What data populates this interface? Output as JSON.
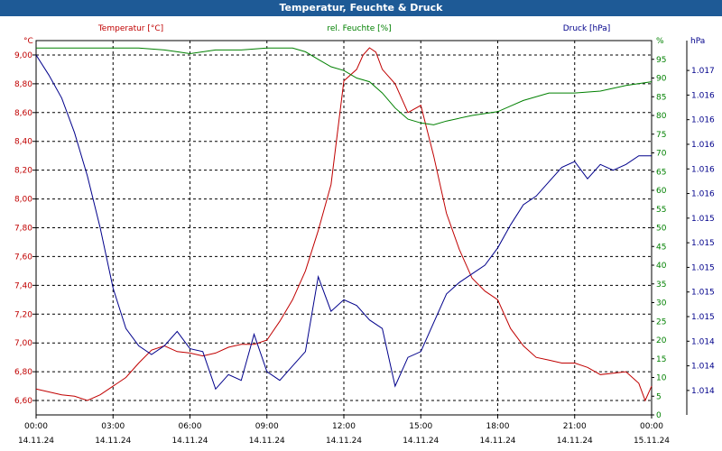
{
  "chart_data": {
    "type": "line",
    "title": "Temperatur, Feuchte & Druck",
    "grid": true,
    "x_ticks": [
      {
        "time": "00:00",
        "date": "14.11.24"
      },
      {
        "time": "03:00",
        "date": "14.11.24"
      },
      {
        "time": "06:00",
        "date": "14.11.24"
      },
      {
        "time": "09:00",
        "date": "14.11.24"
      },
      {
        "time": "12:00",
        "date": "14.11.24"
      },
      {
        "time": "15:00",
        "date": "14.11.24"
      },
      {
        "time": "18:00",
        "date": "14.11.24"
      },
      {
        "time": "21:00",
        "date": "14.11.24"
      },
      {
        "time": "00:00",
        "date": "15.11.24"
      }
    ],
    "x_range_hours": [
      0,
      24
    ],
    "axes": {
      "temperature": {
        "unit": "°C",
        "ylim": [
          6.5,
          9.1
        ],
        "ticks": [
          "6,60",
          "6,80",
          "7,00",
          "7,20",
          "7,40",
          "7,60",
          "7,80",
          "8,00",
          "8,20",
          "8,40",
          "8,60",
          "8,80",
          "9,00"
        ],
        "color": "#c00000"
      },
      "humidity": {
        "unit": "%",
        "ylim": [
          0,
          100
        ],
        "ticks": [
          "0",
          "5",
          "10",
          "15",
          "20",
          "25",
          "30",
          "35",
          "40",
          "45",
          "50",
          "55",
          "60",
          "65",
          "70",
          "75",
          "80",
          "85",
          "90",
          "95",
          "%"
        ],
        "color": "#008000"
      },
      "pressure": {
        "unit": "hPa",
        "ylim": [
          0,
          13
        ],
        "ticks": [
          "1.014",
          "1.014",
          "1.014",
          "1.015",
          "1.015",
          "1.015",
          "1.015",
          "1.015",
          "1.016",
          "1.016",
          "1.016",
          "1.016",
          "1.016",
          "1.017"
        ],
        "color": "#00008b"
      }
    },
    "series": [
      {
        "name": "Temperatur [°C]",
        "axis": "temperature",
        "color": "#c00000",
        "x": [
          0,
          0.5,
          1,
          1.5,
          2,
          2.5,
          3,
          3.5,
          4,
          4.5,
          5,
          5.5,
          6,
          6.5,
          7,
          7.5,
          8,
          8.5,
          9,
          9.5,
          10,
          10.5,
          11,
          11.5,
          12,
          12.5,
          12.75,
          13,
          13.25,
          13.5,
          14,
          14.5,
          15,
          15.5,
          16,
          16.5,
          17,
          17.5,
          18,
          18.5,
          19,
          19.5,
          20,
          20.5,
          21,
          21.5,
          22,
          22.5,
          23,
          23.5,
          23.75,
          24
        ],
        "values": [
          6.68,
          6.66,
          6.64,
          6.63,
          6.6,
          6.64,
          6.7,
          6.76,
          6.86,
          6.95,
          6.98,
          6.94,
          6.93,
          6.91,
          6.93,
          6.97,
          6.99,
          6.99,
          7.02,
          7.15,
          7.3,
          7.5,
          7.78,
          8.1,
          8.82,
          8.9,
          9.0,
          9.05,
          9.02,
          8.9,
          8.8,
          8.6,
          8.65,
          8.3,
          7.9,
          7.65,
          7.45,
          7.36,
          7.3,
          7.1,
          6.98,
          6.9,
          6.88,
          6.86,
          6.86,
          6.83,
          6.78,
          6.79,
          6.8,
          6.72,
          6.6,
          6.7
        ]
      },
      {
        "name": "rel. Feuchte [%]",
        "axis": "humidity",
        "color": "#008000",
        "x": [
          0,
          1,
          2,
          3,
          4,
          5,
          5.5,
          6,
          7,
          8,
          9,
          9.5,
          10,
          10.5,
          11,
          11.5,
          12,
          12.5,
          13,
          13.5,
          14,
          14.5,
          15,
          15.5,
          16,
          17,
          18,
          18.5,
          19,
          20,
          21,
          22,
          23,
          24
        ],
        "values": [
          98,
          98,
          98,
          98,
          98,
          97.5,
          97,
          96.5,
          97.5,
          97.5,
          98,
          98,
          98,
          97,
          95,
          93,
          92,
          90,
          89,
          86,
          82,
          79,
          78,
          77.5,
          78.5,
          80,
          81,
          82.5,
          84,
          86,
          86,
          86.5,
          88,
          89
        ]
      },
      {
        "name": "Druck [hPa]",
        "axis": "pressure",
        "color": "#00008b",
        "x": [
          0,
          0.5,
          1,
          1.5,
          2,
          2.5,
          3,
          3.5,
          4,
          4.5,
          5,
          5.5,
          6,
          6.5,
          7,
          7.5,
          8,
          8.5,
          9,
          9.5,
          10,
          10.5,
          11,
          11.5,
          12,
          12.5,
          13,
          13.5,
          14,
          14.5,
          15,
          15.5,
          16,
          16.5,
          17,
          17.5,
          18,
          18.5,
          19,
          19.5,
          20,
          20.5,
          21,
          21.5,
          22,
          22.5,
          23,
          23.5,
          24
        ],
        "values": [
          12.5,
          11.8,
          11.0,
          9.8,
          8.3,
          6.5,
          4.4,
          3.0,
          2.4,
          2.1,
          2.4,
          2.9,
          2.3,
          2.2,
          0.9,
          1.4,
          1.2,
          2.8,
          1.5,
          1.2,
          1.7,
          2.2,
          4.8,
          3.6,
          4.0,
          3.8,
          3.3,
          3.0,
          1.0,
          2.0,
          2.2,
          3.2,
          4.2,
          4.6,
          4.9,
          5.2,
          5.8,
          6.6,
          7.3,
          7.6,
          8.1,
          8.6,
          8.8,
          8.2,
          8.7,
          8.5,
          8.7,
          9.0,
          9.0
        ]
      }
    ]
  }
}
